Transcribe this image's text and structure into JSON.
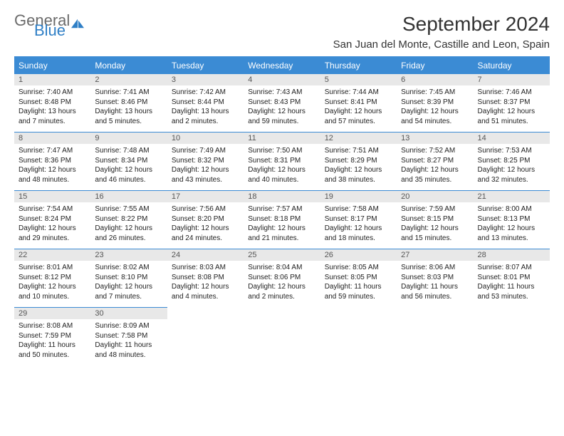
{
  "brand": {
    "part1": "General",
    "part2": "Blue"
  },
  "title": "September 2024",
  "location": "San Juan del Monte, Castille and Leon, Spain",
  "colors": {
    "accent": "#3b8bd4",
    "daynum_bg": "#e8e8e8",
    "text": "#222222"
  },
  "days_of_week": [
    "Sunday",
    "Monday",
    "Tuesday",
    "Wednesday",
    "Thursday",
    "Friday",
    "Saturday"
  ],
  "weeks": [
    [
      {
        "n": "1",
        "sr": "Sunrise: 7:40 AM",
        "ss": "Sunset: 8:48 PM",
        "dl": "Daylight: 13 hours and 7 minutes."
      },
      {
        "n": "2",
        "sr": "Sunrise: 7:41 AM",
        "ss": "Sunset: 8:46 PM",
        "dl": "Daylight: 13 hours and 5 minutes."
      },
      {
        "n": "3",
        "sr": "Sunrise: 7:42 AM",
        "ss": "Sunset: 8:44 PM",
        "dl": "Daylight: 13 hours and 2 minutes."
      },
      {
        "n": "4",
        "sr": "Sunrise: 7:43 AM",
        "ss": "Sunset: 8:43 PM",
        "dl": "Daylight: 12 hours and 59 minutes."
      },
      {
        "n": "5",
        "sr": "Sunrise: 7:44 AM",
        "ss": "Sunset: 8:41 PM",
        "dl": "Daylight: 12 hours and 57 minutes."
      },
      {
        "n": "6",
        "sr": "Sunrise: 7:45 AM",
        "ss": "Sunset: 8:39 PM",
        "dl": "Daylight: 12 hours and 54 minutes."
      },
      {
        "n": "7",
        "sr": "Sunrise: 7:46 AM",
        "ss": "Sunset: 8:37 PM",
        "dl": "Daylight: 12 hours and 51 minutes."
      }
    ],
    [
      {
        "n": "8",
        "sr": "Sunrise: 7:47 AM",
        "ss": "Sunset: 8:36 PM",
        "dl": "Daylight: 12 hours and 48 minutes."
      },
      {
        "n": "9",
        "sr": "Sunrise: 7:48 AM",
        "ss": "Sunset: 8:34 PM",
        "dl": "Daylight: 12 hours and 46 minutes."
      },
      {
        "n": "10",
        "sr": "Sunrise: 7:49 AM",
        "ss": "Sunset: 8:32 PM",
        "dl": "Daylight: 12 hours and 43 minutes."
      },
      {
        "n": "11",
        "sr": "Sunrise: 7:50 AM",
        "ss": "Sunset: 8:31 PM",
        "dl": "Daylight: 12 hours and 40 minutes."
      },
      {
        "n": "12",
        "sr": "Sunrise: 7:51 AM",
        "ss": "Sunset: 8:29 PM",
        "dl": "Daylight: 12 hours and 38 minutes."
      },
      {
        "n": "13",
        "sr": "Sunrise: 7:52 AM",
        "ss": "Sunset: 8:27 PM",
        "dl": "Daylight: 12 hours and 35 minutes."
      },
      {
        "n": "14",
        "sr": "Sunrise: 7:53 AM",
        "ss": "Sunset: 8:25 PM",
        "dl": "Daylight: 12 hours and 32 minutes."
      }
    ],
    [
      {
        "n": "15",
        "sr": "Sunrise: 7:54 AM",
        "ss": "Sunset: 8:24 PM",
        "dl": "Daylight: 12 hours and 29 minutes."
      },
      {
        "n": "16",
        "sr": "Sunrise: 7:55 AM",
        "ss": "Sunset: 8:22 PM",
        "dl": "Daylight: 12 hours and 26 minutes."
      },
      {
        "n": "17",
        "sr": "Sunrise: 7:56 AM",
        "ss": "Sunset: 8:20 PM",
        "dl": "Daylight: 12 hours and 24 minutes."
      },
      {
        "n": "18",
        "sr": "Sunrise: 7:57 AM",
        "ss": "Sunset: 8:18 PM",
        "dl": "Daylight: 12 hours and 21 minutes."
      },
      {
        "n": "19",
        "sr": "Sunrise: 7:58 AM",
        "ss": "Sunset: 8:17 PM",
        "dl": "Daylight: 12 hours and 18 minutes."
      },
      {
        "n": "20",
        "sr": "Sunrise: 7:59 AM",
        "ss": "Sunset: 8:15 PM",
        "dl": "Daylight: 12 hours and 15 minutes."
      },
      {
        "n": "21",
        "sr": "Sunrise: 8:00 AM",
        "ss": "Sunset: 8:13 PM",
        "dl": "Daylight: 12 hours and 13 minutes."
      }
    ],
    [
      {
        "n": "22",
        "sr": "Sunrise: 8:01 AM",
        "ss": "Sunset: 8:12 PM",
        "dl": "Daylight: 12 hours and 10 minutes."
      },
      {
        "n": "23",
        "sr": "Sunrise: 8:02 AM",
        "ss": "Sunset: 8:10 PM",
        "dl": "Daylight: 12 hours and 7 minutes."
      },
      {
        "n": "24",
        "sr": "Sunrise: 8:03 AM",
        "ss": "Sunset: 8:08 PM",
        "dl": "Daylight: 12 hours and 4 minutes."
      },
      {
        "n": "25",
        "sr": "Sunrise: 8:04 AM",
        "ss": "Sunset: 8:06 PM",
        "dl": "Daylight: 12 hours and 2 minutes."
      },
      {
        "n": "26",
        "sr": "Sunrise: 8:05 AM",
        "ss": "Sunset: 8:05 PM",
        "dl": "Daylight: 11 hours and 59 minutes."
      },
      {
        "n": "27",
        "sr": "Sunrise: 8:06 AM",
        "ss": "Sunset: 8:03 PM",
        "dl": "Daylight: 11 hours and 56 minutes."
      },
      {
        "n": "28",
        "sr": "Sunrise: 8:07 AM",
        "ss": "Sunset: 8:01 PM",
        "dl": "Daylight: 11 hours and 53 minutes."
      }
    ],
    [
      {
        "n": "29",
        "sr": "Sunrise: 8:08 AM",
        "ss": "Sunset: 7:59 PM",
        "dl": "Daylight: 11 hours and 50 minutes."
      },
      {
        "n": "30",
        "sr": "Sunrise: 8:09 AM",
        "ss": "Sunset: 7:58 PM",
        "dl": "Daylight: 11 hours and 48 minutes."
      },
      null,
      null,
      null,
      null,
      null
    ]
  ]
}
